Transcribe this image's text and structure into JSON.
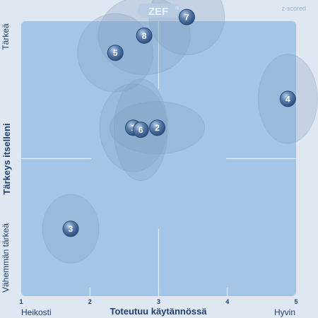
{
  "chart_data": {
    "type": "scatter",
    "logo": "ZEF",
    "logo_mark": "®",
    "mode_label": "z-scored",
    "xlabel": "Toteutuu käytännössä",
    "ylabel": "Tärkeys itselleni",
    "x_low_label": "Heikosti",
    "x_high_label": "Hyvin",
    "y_high_label": "Tärkeä",
    "y_low_label": "Vähemmän tärkeä",
    "xlim": [
      1,
      5
    ],
    "ylim": [
      1,
      5
    ],
    "x_ticks": [
      "1",
      "2",
      "3",
      "4",
      "5"
    ],
    "grid": "center cross",
    "colors": {
      "plot_bg": "#a4c5e6",
      "ellipse": "#7f9dbe",
      "point": "#4d6f9c",
      "axis_text": "#1f3f6e"
    },
    "points": [
      {
        "label": "1",
        "x": 2.63,
        "y": 3.45,
        "sx": 0.49,
        "sy": 0.64
      },
      {
        "label": "2",
        "x": 2.98,
        "y": 3.45,
        "sx": 0.69,
        "sy": 0.38
      },
      {
        "label": "3",
        "x": 1.72,
        "y": 1.98,
        "sx": 0.41,
        "sy": 0.5
      },
      {
        "label": "4",
        "x": 4.88,
        "y": 3.87,
        "sx": 0.43,
        "sy": 0.65
      },
      {
        "label": "5",
        "x": 2.37,
        "y": 4.54,
        "sx": 0.55,
        "sy": 0.57
      },
      {
        "label": "6",
        "x": 2.74,
        "y": 3.42,
        "sx": 0.39,
        "sy": 0.74
      },
      {
        "label": "7",
        "x": 3.41,
        "y": 5.06,
        "sx": 0.55,
        "sy": 0.55
      },
      {
        "label": "8",
        "x": 2.79,
        "y": 4.79,
        "sx": 0.67,
        "sy": 0.57
      }
    ]
  }
}
